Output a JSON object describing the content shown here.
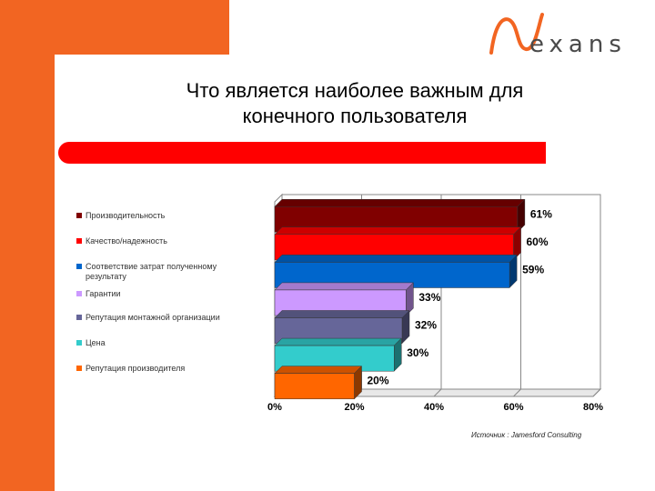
{
  "brand": {
    "logo_text": "exans"
  },
  "title": {
    "line1": "Что является наиболее важным для",
    "line2": "конечного пользователя"
  },
  "source": "Источник : Jamesford Consulting",
  "chart_data": {
    "type": "bar",
    "orientation": "horizontal",
    "categories": [
      "Производительность",
      "Качество/надежность",
      "Соответствие затрат полученному результату",
      "Гарантии",
      "Репутация монтажной организации",
      "Цена",
      "Репутация производителя"
    ],
    "values": [
      61,
      60,
      59,
      33,
      32,
      30,
      20
    ],
    "value_labels": [
      "61%",
      "60%",
      "59%",
      "33%",
      "32%",
      "30%",
      "20%"
    ],
    "colors": [
      "#800000",
      "#ff0000",
      "#0066cc",
      "#cc99ff",
      "#666699",
      "#33cccc",
      "#ff6600"
    ],
    "xlim": [
      0,
      80
    ],
    "xticks": [
      0,
      20,
      40,
      60,
      80
    ],
    "xtick_labels": [
      "0%",
      "20%",
      "40%",
      "60%",
      "80%"
    ],
    "grid": true,
    "legend_position": "left",
    "style": "3d"
  }
}
